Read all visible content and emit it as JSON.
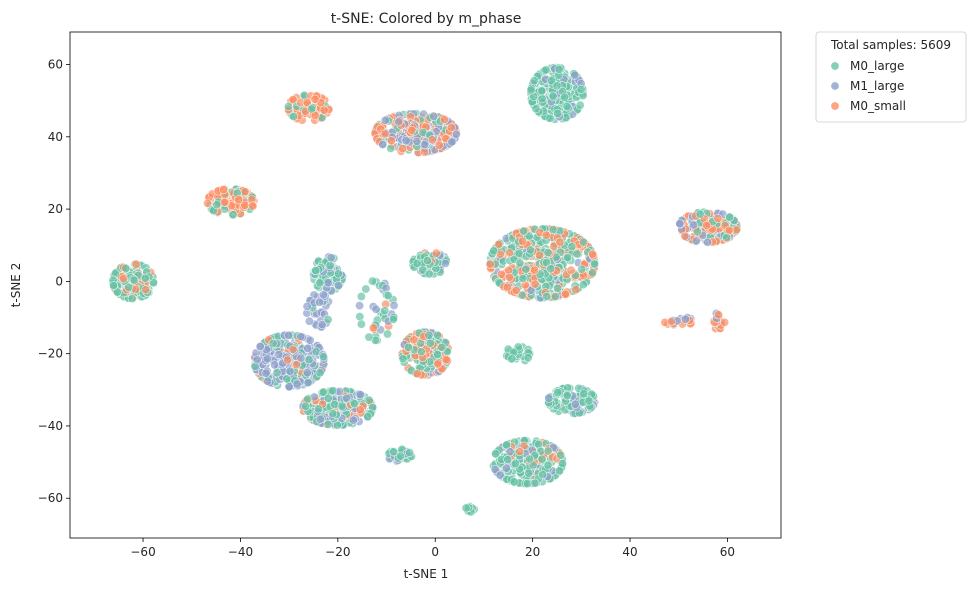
{
  "chart_data": {
    "type": "scatter",
    "title": "t-SNE: Colored by m_phase",
    "xlabel": "t-SNE 1",
    "ylabel": "t-SNE 2",
    "xlim": [
      -75,
      71
    ],
    "ylim": [
      -71,
      69
    ],
    "xticks": [
      -60,
      -40,
      -20,
      0,
      20,
      40,
      60
    ],
    "yticks": [
      -60,
      -40,
      -20,
      0,
      20,
      40,
      60
    ],
    "grid": false,
    "legend": {
      "title": "Total samples: 5609",
      "placement": "outside-top-right"
    },
    "series": [
      {
        "name": "M0_large",
        "color": "#66c2a5"
      },
      {
        "name": "M1_large",
        "color": "#8da0cb"
      },
      {
        "name": "M0_small",
        "color": "#fc8d62"
      }
    ],
    "clusters": [
      {
        "center": [
          25,
          52
        ],
        "spread": [
          4.5,
          6
        ],
        "count": 220,
        "mix": [
          0.9,
          0.1,
          0.0
        ]
      },
      {
        "center": [
          -4,
          41
        ],
        "spread": [
          7,
          4.5
        ],
        "count": 260,
        "mix": [
          0.25,
          0.35,
          0.4
        ]
      },
      {
        "center": [
          -26,
          48
        ],
        "spread": [
          3.5,
          3
        ],
        "count": 70,
        "mix": [
          0.2,
          0.0,
          0.8
        ]
      },
      {
        "center": [
          -42,
          22
        ],
        "spread": [
          4,
          3
        ],
        "count": 120,
        "mix": [
          0.35,
          0.0,
          0.65
        ]
      },
      {
        "center": [
          -62,
          0
        ],
        "spread": [
          3.5,
          4
        ],
        "count": 150,
        "mix": [
          0.8,
          0.0,
          0.2
        ]
      },
      {
        "center": [
          -22,
          2
        ],
        "spread": [
          2.5,
          4
        ],
        "count": 90,
        "mix": [
          0.6,
          0.4,
          0.0
        ]
      },
      {
        "center": [
          -1,
          5
        ],
        "spread": [
          3,
          2.5
        ],
        "count": 80,
        "mix": [
          0.8,
          0.1,
          0.1
        ]
      },
      {
        "center": [
          22,
          5
        ],
        "spread": [
          9,
          8
        ],
        "count": 520,
        "mix": [
          0.55,
          0.05,
          0.4
        ]
      },
      {
        "center": [
          56,
          15
        ],
        "spread": [
          5,
          3.5
        ],
        "count": 160,
        "mix": [
          0.35,
          0.25,
          0.4
        ]
      },
      {
        "center": [
          -30,
          -22
        ],
        "spread": [
          6,
          6
        ],
        "count": 280,
        "mix": [
          0.3,
          0.6,
          0.1
        ]
      },
      {
        "center": [
          -20,
          -35
        ],
        "spread": [
          6,
          4
        ],
        "count": 260,
        "mix": [
          0.55,
          0.25,
          0.2
        ]
      },
      {
        "center": [
          -2,
          -20
        ],
        "spread": [
          4,
          5
        ],
        "count": 200,
        "mix": [
          0.5,
          0.1,
          0.4
        ]
      },
      {
        "center": [
          17,
          -20
        ],
        "spread": [
          2,
          2
        ],
        "count": 30,
        "mix": [
          1.0,
          0.0,
          0.0
        ]
      },
      {
        "center": [
          28,
          -33
        ],
        "spread": [
          4,
          3
        ],
        "count": 110,
        "mix": [
          0.75,
          0.25,
          0.0
        ]
      },
      {
        "center": [
          19,
          -50
        ],
        "spread": [
          6,
          5
        ],
        "count": 240,
        "mix": [
          0.75,
          0.15,
          0.1
        ]
      },
      {
        "center": [
          -7,
          -48
        ],
        "spread": [
          2.5,
          1.5
        ],
        "count": 35,
        "mix": [
          0.8,
          0.2,
          0.0
        ]
      },
      {
        "center": [
          7,
          -63
        ],
        "spread": [
          1,
          0.7
        ],
        "count": 8,
        "mix": [
          1.0,
          0.0,
          0.0
        ]
      },
      {
        "center": [
          50,
          -11
        ],
        "spread": [
          2.5,
          1
        ],
        "count": 20,
        "mix": [
          0.1,
          0.3,
          0.6
        ]
      },
      {
        "center": [
          58,
          -11
        ],
        "spread": [
          1.2,
          1.8
        ],
        "count": 20,
        "mix": [
          0.1,
          0.3,
          0.6
        ]
      },
      {
        "center": [
          -12,
          -8
        ],
        "spread": [
          3,
          7
        ],
        "count": 40,
        "mix": [
          0.5,
          0.3,
          0.2
        ]
      },
      {
        "center": [
          -24,
          -8
        ],
        "spread": [
          2,
          4
        ],
        "count": 30,
        "mix": [
          0.2,
          0.8,
          0.0
        ]
      }
    ]
  }
}
